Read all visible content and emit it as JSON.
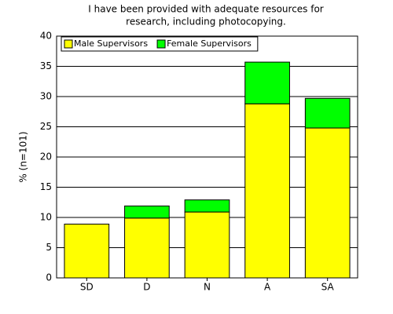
{
  "chart_data": {
    "type": "stacked-bar",
    "title": [
      "I have been provided with adequate resources for",
      "research, including photocopying."
    ],
    "y_label": "% (n=101)",
    "categories": [
      "SD",
      "D",
      "N",
      "A",
      "SA"
    ],
    "series": [
      {
        "name": "Male Supervisors",
        "color": "#ffff00",
        "values": [
          8.9,
          9.9,
          10.9,
          28.8,
          24.8
        ]
      },
      {
        "name": "Female Supervisors",
        "color": "#00ff00",
        "values": [
          0,
          2.0,
          2.0,
          6.9,
          4.9
        ]
      }
    ],
    "ylim": [
      0,
      40
    ],
    "yticks": [
      0,
      5,
      10,
      15,
      20,
      25,
      30,
      35,
      40
    ],
    "grid": true,
    "legend": "top-left"
  }
}
